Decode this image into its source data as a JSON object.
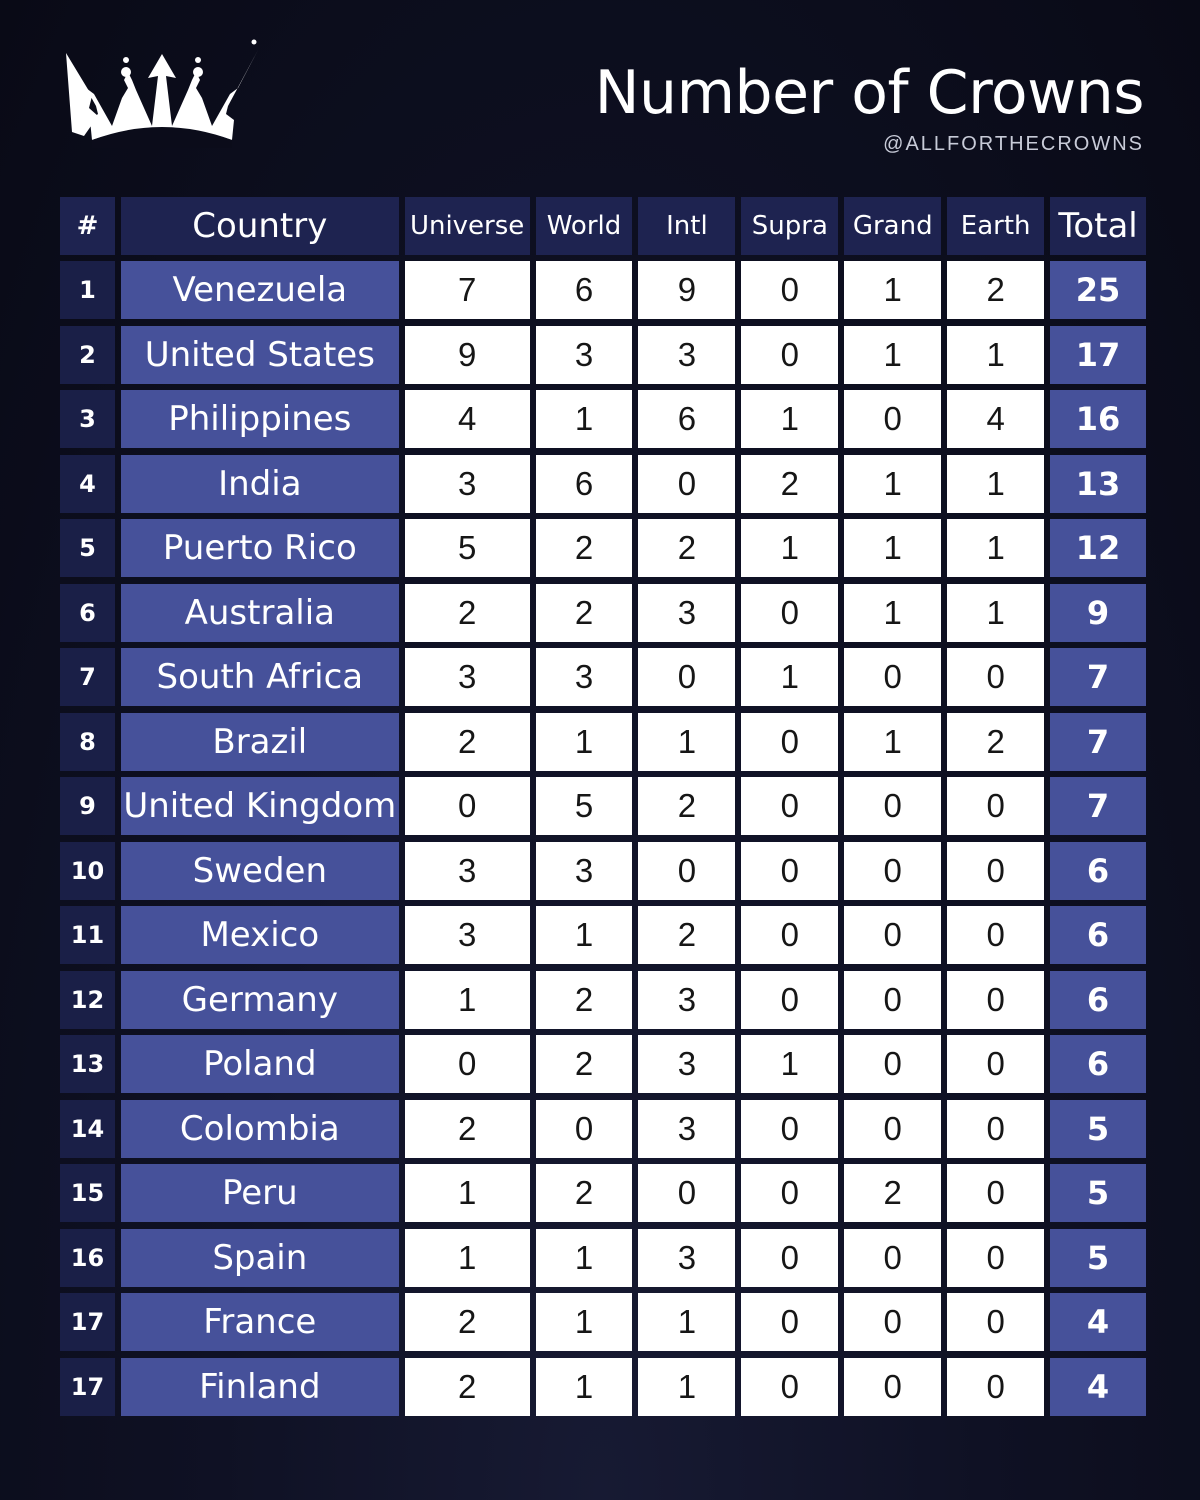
{
  "header": {
    "title": "Number of Crowns",
    "handle": "@ALLFORTHECROWNS",
    "logo_icon": "crown-icon"
  },
  "colors": {
    "background": "#0b0c1a",
    "header_cell": "#1e2350",
    "rank_cell": "#1a1f47",
    "country_cell": "#46519a",
    "value_cell": "#ffffff",
    "total_cell": "#46519a"
  },
  "table": {
    "columns": [
      "#",
      "Country",
      "Universe",
      "World",
      "Intl",
      "Supra",
      "Grand",
      "Earth",
      "Total"
    ],
    "rows": [
      {
        "rank": "1",
        "country": "Venezuela",
        "universe": "7",
        "world": "6",
        "intl": "9",
        "supra": "0",
        "grand": "1",
        "earth": "2",
        "total": "25"
      },
      {
        "rank": "2",
        "country": "United States",
        "universe": "9",
        "world": "3",
        "intl": "3",
        "supra": "0",
        "grand": "1",
        "earth": "1",
        "total": "17"
      },
      {
        "rank": "3",
        "country": "Philippines",
        "universe": "4",
        "world": "1",
        "intl": "6",
        "supra": "1",
        "grand": "0",
        "earth": "4",
        "total": "16"
      },
      {
        "rank": "4",
        "country": "India",
        "universe": "3",
        "world": "6",
        "intl": "0",
        "supra": "2",
        "grand": "1",
        "earth": "1",
        "total": "13"
      },
      {
        "rank": "5",
        "country": "Puerto Rico",
        "universe": "5",
        "world": "2",
        "intl": "2",
        "supra": "1",
        "grand": "1",
        "earth": "1",
        "total": "12"
      },
      {
        "rank": "6",
        "country": "Australia",
        "universe": "2",
        "world": "2",
        "intl": "3",
        "supra": "0",
        "grand": "1",
        "earth": "1",
        "total": "9"
      },
      {
        "rank": "7",
        "country": "South Africa",
        "universe": "3",
        "world": "3",
        "intl": "0",
        "supra": "1",
        "grand": "0",
        "earth": "0",
        "total": "7"
      },
      {
        "rank": "8",
        "country": "Brazil",
        "universe": "2",
        "world": "1",
        "intl": "1",
        "supra": "0",
        "grand": "1",
        "earth": "2",
        "total": "7"
      },
      {
        "rank": "9",
        "country": "United Kingdom",
        "universe": "0",
        "world": "5",
        "intl": "2",
        "supra": "0",
        "grand": "0",
        "earth": "0",
        "total": "7"
      },
      {
        "rank": "10",
        "country": "Sweden",
        "universe": "3",
        "world": "3",
        "intl": "0",
        "supra": "0",
        "grand": "0",
        "earth": "0",
        "total": "6"
      },
      {
        "rank": "11",
        "country": "Mexico",
        "universe": "3",
        "world": "1",
        "intl": "2",
        "supra": "0",
        "grand": "0",
        "earth": "0",
        "total": "6"
      },
      {
        "rank": "12",
        "country": "Germany",
        "universe": "1",
        "world": "2",
        "intl": "3",
        "supra": "0",
        "grand": "0",
        "earth": "0",
        "total": "6"
      },
      {
        "rank": "13",
        "country": "Poland",
        "universe": "0",
        "world": "2",
        "intl": "3",
        "supra": "1",
        "grand": "0",
        "earth": "0",
        "total": "6"
      },
      {
        "rank": "14",
        "country": "Colombia",
        "universe": "2",
        "world": "0",
        "intl": "3",
        "supra": "0",
        "grand": "0",
        "earth": "0",
        "total": "5"
      },
      {
        "rank": "15",
        "country": "Peru",
        "universe": "1",
        "world": "2",
        "intl": "0",
        "supra": "0",
        "grand": "2",
        "earth": "0",
        "total": "5"
      },
      {
        "rank": "16",
        "country": "Spain",
        "universe": "1",
        "world": "1",
        "intl": "3",
        "supra": "0",
        "grand": "0",
        "earth": "0",
        "total": "5"
      },
      {
        "rank": "17",
        "country": "France",
        "universe": "2",
        "world": "1",
        "intl": "1",
        "supra": "0",
        "grand": "0",
        "earth": "0",
        "total": "4"
      },
      {
        "rank": "17",
        "country": "Finland",
        "universe": "2",
        "world": "1",
        "intl": "1",
        "supra": "0",
        "grand": "0",
        "earth": "0",
        "total": "4"
      }
    ]
  },
  "chart_data": {
    "type": "table",
    "title": "Number of Crowns",
    "subtitle": "@ALLFORTHECROWNS",
    "columns": [
      "#",
      "Country",
      "Universe",
      "World",
      "Intl",
      "Supra",
      "Grand",
      "Earth",
      "Total"
    ],
    "categories": [
      "Venezuela",
      "United States",
      "Philippines",
      "India",
      "Puerto Rico",
      "Australia",
      "South Africa",
      "Brazil",
      "United Kingdom",
      "Sweden",
      "Mexico",
      "Germany",
      "Poland",
      "Colombia",
      "Peru",
      "Spain",
      "France",
      "Finland"
    ],
    "ranks": [
      1,
      2,
      3,
      4,
      5,
      6,
      7,
      8,
      9,
      10,
      11,
      12,
      13,
      14,
      15,
      16,
      17,
      17
    ],
    "series": [
      {
        "name": "Universe",
        "values": [
          7,
          9,
          4,
          3,
          5,
          2,
          3,
          2,
          0,
          3,
          3,
          1,
          0,
          2,
          1,
          1,
          2,
          2
        ]
      },
      {
        "name": "World",
        "values": [
          6,
          3,
          1,
          6,
          2,
          2,
          3,
          1,
          5,
          3,
          1,
          2,
          2,
          0,
          2,
          1,
          1,
          1
        ]
      },
      {
        "name": "Intl",
        "values": [
          9,
          3,
          6,
          0,
          2,
          3,
          0,
          1,
          2,
          0,
          2,
          3,
          3,
          3,
          0,
          3,
          1,
          1
        ]
      },
      {
        "name": "Supra",
        "values": [
          0,
          0,
          1,
          2,
          1,
          0,
          1,
          0,
          0,
          0,
          0,
          0,
          1,
          0,
          0,
          0,
          0,
          0
        ]
      },
      {
        "name": "Grand",
        "values": [
          1,
          1,
          0,
          1,
          1,
          1,
          0,
          1,
          0,
          0,
          0,
          0,
          0,
          0,
          2,
          0,
          0,
          0
        ]
      },
      {
        "name": "Earth",
        "values": [
          2,
          1,
          4,
          1,
          1,
          1,
          0,
          2,
          0,
          0,
          0,
          0,
          0,
          0,
          0,
          0,
          0,
          0
        ]
      },
      {
        "name": "Total",
        "values": [
          25,
          17,
          16,
          13,
          12,
          9,
          7,
          7,
          7,
          6,
          6,
          6,
          6,
          5,
          5,
          5,
          4,
          4
        ]
      }
    ]
  }
}
